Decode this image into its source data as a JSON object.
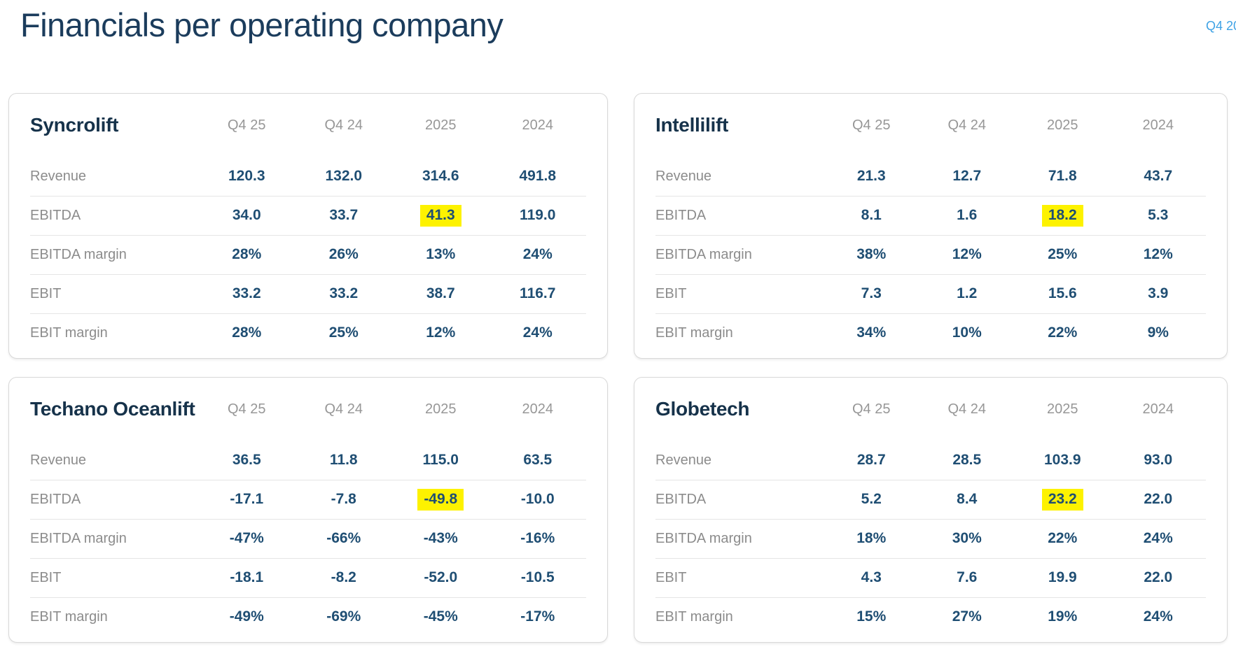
{
  "header": {
    "title": "Financials per operating company",
    "period_link": "Q4 20"
  },
  "colors": {
    "title_text": "#1b3c5c",
    "accent_link": "#3ea2e5",
    "value_text": "#1f4e73",
    "label_text": "#8c8c8c",
    "highlight": "#fdf200"
  },
  "table_columns": [
    "Q4 25",
    "Q4 24",
    "2025",
    "2024"
  ],
  "companies": [
    {
      "name": "Syncrolift",
      "highlight": {
        "row": 1,
        "col": 2
      },
      "rows": [
        {
          "label": "Revenue",
          "values": [
            "120.3",
            "132.0",
            "314.6",
            "491.8"
          ]
        },
        {
          "label": "EBITDA",
          "values": [
            "34.0",
            "33.7",
            "41.3",
            "119.0"
          ]
        },
        {
          "label": "EBITDA margin",
          "values": [
            "28%",
            "26%",
            "13%",
            "24%"
          ]
        },
        {
          "label": "EBIT",
          "values": [
            "33.2",
            "33.2",
            "38.7",
            "116.7"
          ]
        },
        {
          "label": "EBIT margin",
          "values": [
            "28%",
            "25%",
            "12%",
            "24%"
          ]
        }
      ]
    },
    {
      "name": "Intellilift",
      "highlight": {
        "row": 1,
        "col": 2
      },
      "rows": [
        {
          "label": "Revenue",
          "values": [
            "21.3",
            "12.7",
            "71.8",
            "43.7"
          ]
        },
        {
          "label": "EBITDA",
          "values": [
            "8.1",
            "1.6",
            "18.2",
            "5.3"
          ]
        },
        {
          "label": "EBITDA margin",
          "values": [
            "38%",
            "12%",
            "25%",
            "12%"
          ]
        },
        {
          "label": "EBIT",
          "values": [
            "7.3",
            "1.2",
            "15.6",
            "3.9"
          ]
        },
        {
          "label": "EBIT margin",
          "values": [
            "34%",
            "10%",
            "22%",
            "9%"
          ]
        }
      ]
    },
    {
      "name": "Techano Oceanlift",
      "highlight": {
        "row": 1,
        "col": 2
      },
      "rows": [
        {
          "label": "Revenue",
          "values": [
            "36.5",
            "11.8",
            "115.0",
            "63.5"
          ]
        },
        {
          "label": "EBITDA",
          "values": [
            "-17.1",
            "-7.8",
            "-49.8",
            "-10.0"
          ]
        },
        {
          "label": "EBITDA margin",
          "values": [
            "-47%",
            "-66%",
            "-43%",
            "-16%"
          ]
        },
        {
          "label": "EBIT",
          "values": [
            "-18.1",
            "-8.2",
            "-52.0",
            "-10.5"
          ]
        },
        {
          "label": "EBIT margin",
          "values": [
            "-49%",
            "-69%",
            "-45%",
            "-17%"
          ]
        }
      ]
    },
    {
      "name": "Globetech",
      "highlight": {
        "row": 1,
        "col": 2
      },
      "rows": [
        {
          "label": "Revenue",
          "values": [
            "28.7",
            "28.5",
            "103.9",
            "93.0"
          ]
        },
        {
          "label": "EBITDA",
          "values": [
            "5.2",
            "8.4",
            "23.2",
            "22.0"
          ]
        },
        {
          "label": "EBITDA margin",
          "values": [
            "18%",
            "30%",
            "22%",
            "24%"
          ]
        },
        {
          "label": "EBIT",
          "values": [
            "4.3",
            "7.6",
            "19.9",
            "22.0"
          ]
        },
        {
          "label": "EBIT margin",
          "values": [
            "15%",
            "27%",
            "19%",
            "24%"
          ]
        }
      ]
    }
  ]
}
